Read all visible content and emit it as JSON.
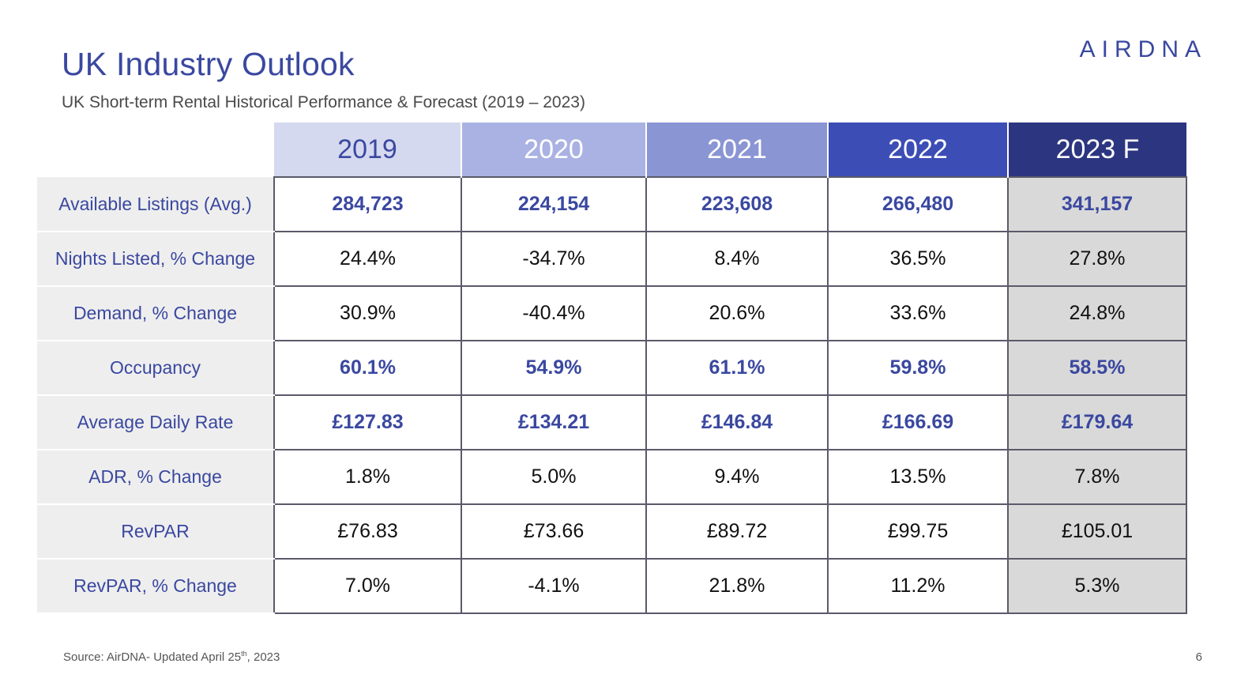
{
  "header": {
    "title": "UK Industry Outlook",
    "subtitle": "UK Short-term Rental Historical Performance & Forecast (2019 – 2023)",
    "logo_text": "AIRDNA"
  },
  "table": {
    "columns": [
      "2019",
      "2020",
      "2021",
      "2022",
      "2023 F"
    ],
    "rows": [
      {
        "label": "Available Listings (Avg.)",
        "values": [
          "284,723",
          "224,154",
          "223,608",
          "266,480",
          "341,157"
        ]
      },
      {
        "label": "Nights Listed, % Change",
        "values": [
          "24.4%",
          "-34.7%",
          "8.4%",
          "36.5%",
          "27.8%"
        ]
      },
      {
        "label": "Demand, % Change",
        "values": [
          "30.9%",
          "-40.4%",
          "20.6%",
          "33.6%",
          "24.8%"
        ]
      },
      {
        "label": "Occupancy",
        "values": [
          "60.1%",
          "54.9%",
          "61.1%",
          "59.8%",
          "58.5%"
        ]
      },
      {
        "label": "Average Daily Rate",
        "values": [
          "£127.83",
          "£134.21",
          "£146.84",
          "£166.69",
          "£179.64"
        ]
      },
      {
        "label": "ADR, % Change",
        "values": [
          "1.8%",
          "5.0%",
          "9.4%",
          "13.5%",
          "7.8%"
        ]
      },
      {
        "label": "RevPAR",
        "values": [
          "£76.83",
          "£73.66",
          "£89.72",
          "£99.75",
          "£105.01"
        ]
      },
      {
        "label": "RevPAR, % Change",
        "values": [
          "7.0%",
          "-4.1%",
          "21.8%",
          "11.2%",
          "5.3%"
        ]
      }
    ]
  },
  "footer": {
    "source_prefix": "Source: AirDNA- Updated April 25",
    "source_sup": "th",
    "source_suffix": ", 2023",
    "page_number": "6"
  },
  "colors": {
    "accent": "#3a48a0",
    "header_2019": "#d5d9ef",
    "header_2020": "#aab2e3",
    "header_2021": "#8a95d4",
    "header_2022": "#3c4db5",
    "header_2023": "#2c3680",
    "forecast_cell": "#d9d9d9",
    "label_cell": "#eeeeee"
  }
}
